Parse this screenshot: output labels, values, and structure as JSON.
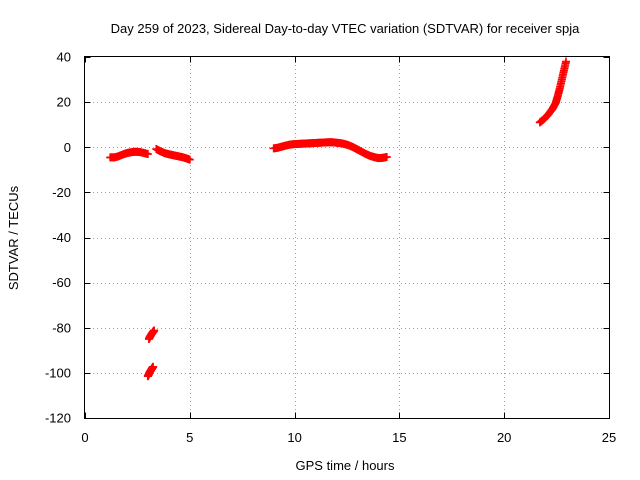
{
  "chart_data": {
    "type": "scatter",
    "title": "Day 259 of 2023, Sidereal Day-to-day VTEC variation (SDTVAR) for receiver spja",
    "xlabel": "GPS time / hours",
    "ylabel": "SDTVAR / TECUs",
    "xlim": [
      0,
      25
    ],
    "ylim": [
      -120,
      40
    ],
    "x_ticks": [
      0,
      5,
      10,
      15,
      20,
      25
    ],
    "y_ticks": [
      -120,
      -100,
      -80,
      -60,
      -40,
      -20,
      0,
      20,
      40
    ],
    "grid": true,
    "marker": "plus",
    "color": "#ff0000",
    "series": [
      {
        "name": "SDTVAR",
        "segments": [
          {
            "x": [
              1.2,
              1.4,
              1.6,
              1.8,
              2.0,
              2.2,
              2.4,
              2.6,
              2.8,
              3.0
            ],
            "y": [
              -4.5,
              -4.5,
              -4.0,
              -3.2,
              -2.6,
              -2.2,
              -2.0,
              -2.1,
              -2.5,
              -3.0
            ]
          },
          {
            "x": [
              3.4,
              3.6,
              3.8,
              4.0,
              4.2,
              4.4,
              4.6,
              4.8,
              5.0
            ],
            "y": [
              -0.8,
              -1.8,
              -2.6,
              -3.1,
              -3.5,
              -3.9,
              -4.3,
              -4.8,
              -5.5
            ]
          },
          {
            "x": [
              3.05,
              3.1,
              3.15,
              3.2,
              3.25,
              3.3
            ],
            "y": [
              -85.0,
              -84.0,
              -83.2,
              -82.5,
              -81.8,
              -81.2
            ]
          },
          {
            "x": [
              3.0,
              3.05,
              3.1,
              3.15,
              3.2,
              3.25
            ],
            "y": [
              -101.5,
              -100.5,
              -99.5,
              -98.8,
              -98.0,
              -97.3
            ]
          },
          {
            "x": [
              9.0,
              9.2,
              9.4,
              9.6,
              9.8,
              10.0,
              10.2,
              10.4,
              10.6,
              10.8,
              11.0,
              11.2,
              11.4,
              11.6,
              11.8,
              12.0,
              12.2,
              12.4,
              12.6,
              12.8,
              13.0,
              13.2,
              13.4,
              13.6,
              13.8,
              14.0,
              14.2,
              14.4
            ],
            "y": [
              -0.5,
              -0.2,
              0.3,
              0.8,
              1.2,
              1.4,
              1.5,
              1.6,
              1.7,
              1.8,
              1.9,
              2.0,
              2.1,
              2.2,
              2.2,
              2.0,
              1.8,
              1.4,
              0.8,
              0.0,
              -1.0,
              -2.0,
              -3.0,
              -3.8,
              -4.4,
              -4.8,
              -4.7,
              -4.3
            ]
          },
          {
            "x": [
              21.7,
              21.9,
              22.1,
              22.3,
              22.45,
              22.55,
              22.65,
              22.75,
              22.85,
              22.95
            ],
            "y": [
              11.0,
              12.5,
              14.5,
              17.0,
              19.5,
              22.5,
              26.0,
              30.0,
              34.0,
              38.0
            ]
          }
        ]
      }
    ]
  }
}
